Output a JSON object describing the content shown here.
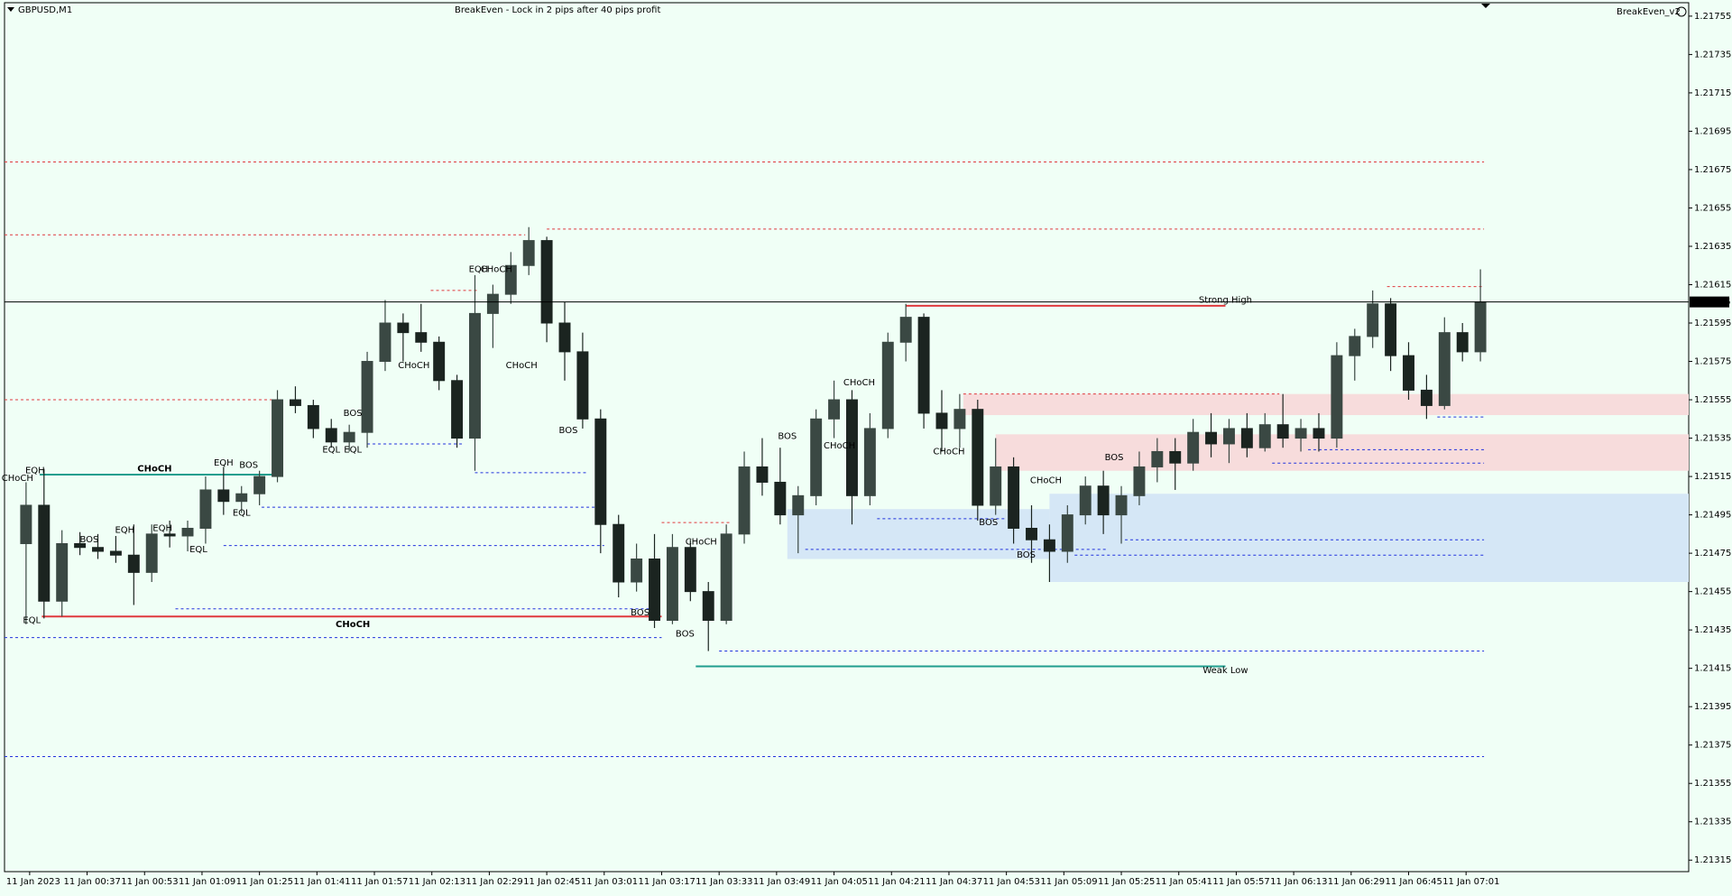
{
  "chart_data": {
    "type": "candlestick",
    "symbol": "GBPUSD,M1",
    "title": "BreakEven - Lock in 2 pips after 40 pips profit",
    "indicator": "BreakEven_v2",
    "up_color": "#3a4843",
    "down_color": "#1b2420",
    "grid": false,
    "xlim": [
      14,
      483
    ],
    "ylim": [
      1.21309,
      1.21762
    ],
    "xticks": [
      {
        "value": 21,
        "label": "11 Jan 2023"
      },
      {
        "value": 37,
        "label": "11 Jan 00:37"
      },
      {
        "value": 53,
        "label": "11 Jan 00:53"
      },
      {
        "value": 69,
        "label": "11 Jan 01:09"
      },
      {
        "value": 85,
        "label": "11 Jan 01:25"
      },
      {
        "value": 101,
        "label": "11 Jan 01:41"
      },
      {
        "value": 117,
        "label": "11 Jan 01:57"
      },
      {
        "value": 133,
        "label": "11 Jan 02:13"
      },
      {
        "value": 149,
        "label": "11 Jan 02:29"
      },
      {
        "value": 165,
        "label": "11 Jan 02:45"
      },
      {
        "value": 181,
        "label": "11 Jan 03:01"
      },
      {
        "value": 197,
        "label": "11 Jan 03:17"
      },
      {
        "value": 213,
        "label": "11 Jan 03:33"
      },
      {
        "value": 229,
        "label": "11 Jan 03:49"
      },
      {
        "value": 245,
        "label": "11 Jan 04:05"
      },
      {
        "value": 261,
        "label": "11 Jan 04:21"
      },
      {
        "value": 277,
        "label": "11 Jan 04:37"
      },
      {
        "value": 293,
        "label": "11 Jan 04:53"
      },
      {
        "value": 309,
        "label": "11 Jan 05:09"
      },
      {
        "value": 325,
        "label": "11 Jan 05:25"
      },
      {
        "value": 341,
        "label": "11 Jan 05:41"
      },
      {
        "value": 357,
        "label": "11 Jan 05:57"
      },
      {
        "value": 373,
        "label": "11 Jan 06:13"
      },
      {
        "value": 389,
        "label": "11 Jan 06:29"
      },
      {
        "value": 405,
        "label": "11 Jan 06:45"
      },
      {
        "value": 421,
        "label": "11 Jan 07:01"
      }
    ],
    "yticks": [
      1.21755,
      1.21735,
      1.21715,
      1.21695,
      1.21675,
      1.21655,
      1.21635,
      1.21615,
      1.21595,
      1.21575,
      1.21555,
      1.21535,
      1.21515,
      1.21495,
      1.21475,
      1.21455,
      1.21435,
      1.21415,
      1.21395,
      1.21375,
      1.21355,
      1.21335,
      1.21315
    ],
    "current_price": 1.21606,
    "x": [
      20,
      25,
      30,
      35,
      40,
      45,
      50,
      55,
      60,
      65,
      70,
      75,
      80,
      85,
      90,
      95,
      100,
      105,
      110,
      115,
      120,
      125,
      130,
      135,
      140,
      145,
      150,
      155,
      160,
      165,
      170,
      175,
      180,
      185,
      190,
      195,
      200,
      205,
      210,
      215,
      220,
      225,
      230,
      235,
      240,
      245,
      250,
      255,
      260,
      265,
      270,
      275,
      280,
      285,
      290,
      295,
      300,
      305,
      310,
      315,
      320,
      325,
      330,
      335,
      340,
      345,
      350,
      355,
      360,
      365,
      370,
      375,
      380,
      385,
      390,
      395,
      400,
      405,
      410,
      415,
      420,
      425
    ],
    "open": [
      1.2148,
      1.215,
      1.2145,
      1.2148,
      1.21478,
      1.21476,
      1.21474,
      1.21465,
      1.21485,
      1.21484,
      1.21488,
      1.21508,
      1.21502,
      1.21506,
      1.21515,
      1.21555,
      1.21552,
      1.2154,
      1.21533,
      1.21538,
      1.21575,
      1.21595,
      1.2159,
      1.21585,
      1.21565,
      1.21535,
      1.216,
      1.2161,
      1.21625,
      1.21638,
      1.21595,
      1.2158,
      1.21545,
      1.2149,
      1.2146,
      1.21472,
      1.2144,
      1.21478,
      1.21455,
      1.2144,
      1.21485,
      1.2152,
      1.21512,
      1.21495,
      1.21505,
      1.21545,
      1.21555,
      1.21505,
      1.2154,
      1.21585,
      1.21598,
      1.21548,
      1.2154,
      1.2155,
      1.215,
      1.2152,
      1.21488,
      1.21482,
      1.21476,
      1.21495,
      1.2151,
      1.21495,
      1.21505,
      1.2152,
      1.21528,
      1.21522,
      1.21538,
      1.21532,
      1.2154,
      1.2153,
      1.21542,
      1.21535,
      1.2154,
      1.21535,
      1.21578,
      1.21588,
      1.21605,
      1.21578,
      1.2156,
      1.21552,
      1.2159,
      1.2158
    ],
    "high": [
      1.21512,
      1.21519,
      1.21487,
      1.21486,
      1.21485,
      1.21484,
      1.2149,
      1.2149,
      1.21492,
      1.21492,
      1.21515,
      1.2152,
      1.2151,
      1.21518,
      1.2156,
      1.21562,
      1.21555,
      1.21545,
      1.21542,
      1.2158,
      1.21607,
      1.216,
      1.21605,
      1.21588,
      1.21568,
      1.2162,
      1.21615,
      1.21632,
      1.21645,
      1.2164,
      1.21606,
      1.2159,
      1.2155,
      1.21495,
      1.2148,
      1.21485,
      1.21485,
      1.21482,
      1.2146,
      1.2149,
      1.21528,
      1.21535,
      1.2153,
      1.2151,
      1.2155,
      1.21565,
      1.2156,
      1.21548,
      1.2159,
      1.21605,
      1.216,
      1.2156,
      1.21558,
      1.21555,
      1.21535,
      1.21525,
      1.215,
      1.2149,
      1.215,
      1.21515,
      1.21518,
      1.2151,
      1.21528,
      1.21535,
      1.21535,
      1.21545,
      1.21548,
      1.21545,
      1.21548,
      1.21548,
      1.21558,
      1.21545,
      1.21548,
      1.21585,
      1.21592,
      1.21612,
      1.21608,
      1.21585,
      1.21568,
      1.21598,
      1.21595,
      1.21623
    ],
    "low": [
      1.21438,
      1.21441,
      1.21442,
      1.21474,
      1.21472,
      1.2147,
      1.21448,
      1.2146,
      1.21478,
      1.21476,
      1.2148,
      1.21495,
      1.21496,
      1.215,
      1.21512,
      1.21548,
      1.21535,
      1.2153,
      1.21528,
      1.2153,
      1.2157,
      1.21575,
      1.2158,
      1.2156,
      1.2153,
      1.21518,
      1.21582,
      1.21605,
      1.2162,
      1.21585,
      1.21565,
      1.2154,
      1.21475,
      1.21452,
      1.21455,
      1.21436,
      1.21438,
      1.2145,
      1.21424,
      1.21438,
      1.2148,
      1.21505,
      1.2149,
      1.21475,
      1.215,
      1.21535,
      1.2149,
      1.215,
      1.21535,
      1.21575,
      1.2154,
      1.21528,
      1.2153,
      1.21492,
      1.21495,
      1.2148,
      1.2147,
      1.2146,
      1.2147,
      1.2149,
      1.21485,
      1.2148,
      1.215,
      1.21512,
      1.21508,
      1.21518,
      1.21525,
      1.21522,
      1.21525,
      1.21528,
      1.2153,
      1.21528,
      1.21528,
      1.2153,
      1.21565,
      1.21582,
      1.2157,
      1.21555,
      1.21545,
      1.2155,
      1.21575,
      1.21575
    ],
    "close": [
      1.215,
      1.2145,
      1.2148,
      1.21478,
      1.21476,
      1.21474,
      1.21465,
      1.21485,
      1.21484,
      1.21488,
      1.21508,
      1.21502,
      1.21506,
      1.21515,
      1.21555,
      1.21552,
      1.2154,
      1.21533,
      1.21538,
      1.21575,
      1.21595,
      1.2159,
      1.21585,
      1.21565,
      1.21535,
      1.216,
      1.2161,
      1.21625,
      1.21638,
      1.21595,
      1.2158,
      1.21545,
      1.2149,
      1.2146,
      1.21472,
      1.2144,
      1.21478,
      1.21455,
      1.2144,
      1.21485,
      1.2152,
      1.21512,
      1.21495,
      1.21505,
      1.21545,
      1.21555,
      1.21505,
      1.2154,
      1.21585,
      1.21598,
      1.21548,
      1.2154,
      1.2155,
      1.215,
      1.2152,
      1.21488,
      1.21482,
      1.21476,
      1.21495,
      1.2151,
      1.21495,
      1.21505,
      1.2152,
      1.21528,
      1.21522,
      1.21538,
      1.21532,
      1.2154,
      1.2153,
      1.21542,
      1.21535,
      1.2154,
      1.21535,
      1.21578,
      1.21588,
      1.21605,
      1.21578,
      1.2156,
      1.21552,
      1.2159,
      1.2158,
      1.21606
    ],
    "zones": [
      {
        "top": 1.21558,
        "bottom": 1.21547,
        "from": 281,
        "to": 483,
        "color": "#f7dcdc"
      },
      {
        "top": 1.21537,
        "bottom": 1.21518,
        "from": 290,
        "to": 483,
        "color": "#f7dcdc"
      },
      {
        "top": 1.21498,
        "bottom": 1.21472,
        "from": 232,
        "to": 305,
        "color": "#d5e7f6"
      },
      {
        "top": 1.21506,
        "bottom": 1.2146,
        "from": 305,
        "to": 483,
        "color": "#d5e7f6"
      }
    ],
    "levels": [
      {
        "price": 1.21679,
        "from": 14,
        "to": 426,
        "color": "#e0393e",
        "style": "dashed"
      },
      {
        "price": 1.21641,
        "from": 14,
        "to": 159,
        "color": "#e0393e",
        "style": "dashed"
      },
      {
        "price": 1.21644,
        "from": 165,
        "to": 426,
        "color": "#e0393e",
        "style": "dashed"
      },
      {
        "price": 1.21555,
        "from": 14,
        "to": 90,
        "color": "#e0393e",
        "style": "dashed"
      },
      {
        "price": 1.21612,
        "from": 132.7,
        "to": 145.6,
        "color": "#e0393e",
        "style": "dashed"
      },
      {
        "price": 1.21614,
        "from": 399,
        "to": 426,
        "color": "#e0393e",
        "style": "dashed"
      },
      {
        "price": 1.21558,
        "from": 281,
        "to": 369,
        "color": "#e0393e",
        "style": "dashed"
      },
      {
        "price": 1.21491,
        "from": 197,
        "to": 216,
        "color": "#e0393e",
        "style": "dashed"
      },
      {
        "price": 1.21369,
        "from": 14,
        "to": 426,
        "color": "#2233dd",
        "style": "dashed"
      },
      {
        "price": 1.21424,
        "from": 213,
        "to": 426,
        "color": "#2233dd",
        "style": "dashed"
      },
      {
        "price": 1.21431,
        "from": 14,
        "to": 197,
        "color": "#2233dd",
        "style": "dashed"
      },
      {
        "price": 1.21446,
        "from": 61.6,
        "to": 197,
        "color": "#2233dd",
        "style": "dashed"
      },
      {
        "price": 1.21479,
        "from": 75,
        "to": 181,
        "color": "#2233dd",
        "style": "dashed"
      },
      {
        "price": 1.21499,
        "from": 85.6,
        "to": 179.5,
        "color": "#2233dd",
        "style": "dashed"
      },
      {
        "price": 1.21517,
        "from": 145,
        "to": 176,
        "color": "#2233dd",
        "style": "dashed"
      },
      {
        "price": 1.21532,
        "from": 115,
        "to": 142,
        "color": "#2233dd",
        "style": "dashed"
      },
      {
        "price": 1.21477,
        "from": 237,
        "to": 321,
        "color": "#2233dd",
        "style": "dashed"
      },
      {
        "price": 1.21493,
        "from": 257,
        "to": 293,
        "color": "#2233dd",
        "style": "dashed"
      },
      {
        "price": 1.21482,
        "from": 326,
        "to": 426,
        "color": "#2233dd",
        "style": "dashed"
      },
      {
        "price": 1.21474,
        "from": 312,
        "to": 426,
        "color": "#2233dd",
        "style": "dashed"
      },
      {
        "price": 1.21529,
        "from": 377,
        "to": 426,
        "color": "#2233dd",
        "style": "dashed"
      },
      {
        "price": 1.21522,
        "from": 367,
        "to": 426,
        "color": "#2233dd",
        "style": "dashed"
      },
      {
        "price": 1.21546,
        "from": 413,
        "to": 426,
        "color": "#2233dd",
        "style": "dashed"
      },
      {
        "price": 1.21516,
        "from": 23.8,
        "to": 88.7,
        "color": "#1f9e8e",
        "style": "solid"
      },
      {
        "price": 1.21442,
        "from": 24.4,
        "to": 197,
        "color": "#e0393e",
        "style": "solid"
      },
      {
        "price": 1.21604,
        "from": 265,
        "to": 354,
        "color": "#e0393e",
        "style": "solid"
      },
      {
        "price": 1.21416,
        "from": 206.5,
        "to": 354,
        "color": "#1f9e8e",
        "style": "solid"
      }
    ],
    "annotations": [
      {
        "text": "CHoCH",
        "x": 55.8,
        "price": 1.21519,
        "color": "#1f9e8e",
        "emphasis": true
      },
      {
        "text": "CHoCH",
        "x": 111,
        "price": 1.21438,
        "color": "#e0393e",
        "emphasis": true
      },
      {
        "text": "Strong High",
        "x": 354,
        "price": 1.21607,
        "color": "#e0393e",
        "emphasis": false
      },
      {
        "text": "Weak Low",
        "x": 354,
        "price": 1.21414,
        "color": "#1f9e8e",
        "emphasis": false
      },
      {
        "text": "EQH",
        "x": 22.5,
        "price": 1.21518,
        "color": "#e0393e",
        "emphasis": false
      },
      {
        "text": "CHoCH",
        "x": 17.6,
        "price": 1.21514,
        "color": "#1f9e8e",
        "emphasis": false
      },
      {
        "text": "EQL",
        "x": 21.6,
        "price": 1.2144,
        "color": "#1f9e8e",
        "emphasis": false
      },
      {
        "text": "BOS",
        "x": 37.6,
        "price": 1.21482,
        "color": "#1f9e8e",
        "emphasis": false
      },
      {
        "text": "EQH",
        "x": 47.5,
        "price": 1.21487,
        "color": "#e0393e",
        "emphasis": false
      },
      {
        "text": "EQH",
        "x": 58,
        "price": 1.21488,
        "color": "#e0393e",
        "emphasis": false
      },
      {
        "text": "EQL",
        "x": 68,
        "price": 1.21477,
        "color": "#1f9e8e",
        "emphasis": false
      },
      {
        "text": "EQH",
        "x": 75,
        "price": 1.21522,
        "color": "#e0393e",
        "emphasis": false
      },
      {
        "text": "BOS",
        "x": 82,
        "price": 1.21521,
        "color": "#1f9e8e",
        "emphasis": false
      },
      {
        "text": "EQL",
        "x": 80,
        "price": 1.21496,
        "color": "#1f9e8e",
        "emphasis": false
      },
      {
        "text": "BOS",
        "x": 111,
        "price": 1.21548,
        "color": "#1f9e8e",
        "emphasis": false
      },
      {
        "text": "EQL",
        "x": 105,
        "price": 1.21529,
        "color": "#1f9e8e",
        "emphasis": false
      },
      {
        "text": "EQL",
        "x": 111,
        "price": 1.21529,
        "color": "#1f9e8e",
        "emphasis": false
      },
      {
        "text": "CHoCH",
        "x": 128,
        "price": 1.21573,
        "color": "#e0393e",
        "emphasis": false
      },
      {
        "text": "EQH",
        "x": 146,
        "price": 1.21623,
        "color": "#e0393e",
        "emphasis": false
      },
      {
        "text": "CHoCH",
        "x": 151,
        "price": 1.21623,
        "color": "#1f9e8e",
        "emphasis": false
      },
      {
        "text": "CHoCH",
        "x": 158,
        "price": 1.21573,
        "color": "#e0393e",
        "emphasis": false
      },
      {
        "text": "BOS",
        "x": 171,
        "price": 1.21539,
        "color": "#e0393e",
        "emphasis": false
      },
      {
        "text": "BOS",
        "x": 191,
        "price": 1.21444,
        "color": "#e0393e",
        "emphasis": false
      },
      {
        "text": "BOS",
        "x": 203.5,
        "price": 1.21433,
        "color": "#e0393e",
        "emphasis": false
      },
      {
        "text": "CHoCH",
        "x": 208,
        "price": 1.21481,
        "color": "#1f9e8e",
        "emphasis": false
      },
      {
        "text": "BOS",
        "x": 232,
        "price": 1.21536,
        "color": "#1f9e8e",
        "emphasis": false
      },
      {
        "text": "CHoCH",
        "x": 246.5,
        "price": 1.21531,
        "color": "#e0393e",
        "emphasis": false
      },
      {
        "text": "CHoCH",
        "x": 252,
        "price": 1.21564,
        "color": "#1f9e8e",
        "emphasis": false
      },
      {
        "text": "CHoCH",
        "x": 277,
        "price": 1.21528,
        "color": "#e0393e",
        "emphasis": false
      },
      {
        "text": "BOS",
        "x": 288,
        "price": 1.21491,
        "color": "#e0393e",
        "emphasis": false
      },
      {
        "text": "CHoCH",
        "x": 304,
        "price": 1.21513,
        "color": "#1f9e8e",
        "emphasis": false
      },
      {
        "text": "BOS",
        "x": 298.5,
        "price": 1.21474,
        "color": "#e0393e",
        "emphasis": false
      },
      {
        "text": "BOS",
        "x": 323,
        "price": 1.21525,
        "color": "#1f9e8e",
        "emphasis": false
      }
    ]
  }
}
